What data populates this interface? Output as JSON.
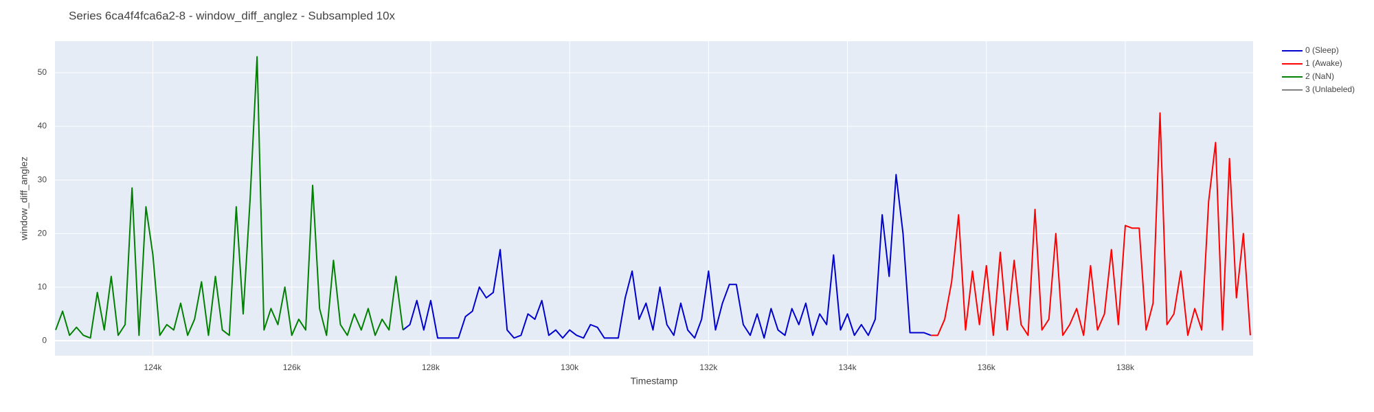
{
  "chart_data": {
    "type": "line",
    "title": "Series 6ca4f4fca6a2-8 - window_diff_anglez - Subsampled 10x",
    "x_label": "Timestamp",
    "y_label": "window_diff_anglez",
    "xlim": [
      122590,
      139840
    ],
    "ylim": [
      -2.8,
      55.9
    ],
    "xticks": [
      {
        "value": 124000,
        "label": "124k"
      },
      {
        "value": 126000,
        "label": "126k"
      },
      {
        "value": 128000,
        "label": "128k"
      },
      {
        "value": 130000,
        "label": "130k"
      },
      {
        "value": 132000,
        "label": "132k"
      },
      {
        "value": 134000,
        "label": "134k"
      },
      {
        "value": 136000,
        "label": "136k"
      },
      {
        "value": 138000,
        "label": "138k"
      }
    ],
    "yticks": [
      0,
      10,
      20,
      30,
      40,
      50
    ],
    "grid": true,
    "legend": "right",
    "series": [
      {
        "name": "0 (Sleep)",
        "color": "#0000cd",
        "x": [
          127600,
          127700,
          127800,
          127900,
          128000,
          128100,
          128200,
          128300,
          128400,
          128500,
          128600,
          128700,
          128800,
          128900,
          129000,
          129100,
          129200,
          129300,
          129400,
          129500,
          129600,
          129700,
          129800,
          129900,
          130000,
          130100,
          130200,
          130300,
          130400,
          130500,
          130600,
          130700,
          130800,
          130900,
          131000,
          131100,
          131200,
          131300,
          131400,
          131500,
          131600,
          131700,
          131800,
          131900,
          132000,
          132100,
          132200,
          132300,
          132400,
          132500,
          132600,
          132700,
          132800,
          132900,
          133000,
          133100,
          133200,
          133300,
          133400,
          133500,
          133600,
          133700,
          133800,
          133900,
          134000,
          134100,
          134200,
          134300,
          134400,
          134500,
          134600,
          134700,
          134800,
          134900,
          135000,
          135100,
          135200
        ],
        "values": [
          2,
          3,
          7.5,
          2,
          7.5,
          0.5,
          0.5,
          0.5,
          0.5,
          4.5,
          5.5,
          10,
          8,
          9,
          17,
          2,
          0.5,
          1,
          5,
          4,
          7.5,
          1,
          2,
          0.5,
          2,
          1,
          0.5,
          3,
          2.5,
          0.5,
          0.5,
          0.5,
          8,
          13,
          4,
          7,
          2,
          10,
          3,
          1,
          7,
          2,
          0.5,
          4,
          13,
          2,
          7,
          10.5,
          10.5,
          3,
          1,
          5,
          0.5,
          6,
          2,
          1,
          6,
          3,
          7,
          1,
          5,
          3,
          16,
          2,
          5,
          1,
          3,
          1,
          4,
          23.5,
          12,
          31,
          20,
          1.5,
          1.5,
          1.5,
          1
        ]
      },
      {
        "name": "1 (Awake)",
        "color": "#ff0000",
        "x": [
          135200,
          135300,
          135400,
          135500,
          135600,
          135700,
          135800,
          135900,
          136000,
          136100,
          136200,
          136300,
          136400,
          136500,
          136600,
          136700,
          136800,
          136900,
          137000,
          137100,
          137200,
          137300,
          137400,
          137500,
          137600,
          137700,
          137800,
          137900,
          138000,
          138100,
          138200,
          138300,
          138400,
          138500,
          138600,
          138700,
          138800,
          138900,
          139000,
          139100,
          139200,
          139300,
          139400,
          139500,
          139600,
          139700,
          139800
        ],
        "values": [
          1,
          1,
          4,
          11,
          23.5,
          2,
          13,
          3,
          14,
          1,
          16.5,
          2,
          15,
          3,
          1,
          24.5,
          2,
          4,
          20,
          1,
          3,
          6,
          1,
          14,
          2,
          5,
          17,
          3,
          21.5,
          21,
          21,
          2,
          7,
          42.5,
          3,
          5,
          13,
          1,
          6,
          2,
          26,
          37,
          2,
          34,
          8,
          20,
          1
        ]
      },
      {
        "name": "2 (NaN)",
        "color": "#008000",
        "x": [
          122600,
          122700,
          122800,
          122900,
          123000,
          123100,
          123200,
          123300,
          123400,
          123500,
          123600,
          123700,
          123800,
          123900,
          124000,
          124100,
          124200,
          124300,
          124400,
          124500,
          124600,
          124700,
          124800,
          124900,
          125000,
          125100,
          125200,
          125300,
          125400,
          125500,
          125600,
          125700,
          125800,
          125900,
          126000,
          126100,
          126200,
          126300,
          126400,
          126500,
          126600,
          126700,
          126800,
          126900,
          127000,
          127100,
          127200,
          127300,
          127400,
          127500,
          127600
        ],
        "values": [
          2,
          5.5,
          1,
          2.5,
          1,
          0.5,
          9,
          2,
          12,
          1,
          3,
          28.5,
          1,
          25,
          16,
          1,
          3,
          2,
          7,
          1,
          4,
          11,
          1,
          12,
          2,
          1,
          25,
          5,
          26.5,
          53,
          2,
          6,
          3,
          10,
          1,
          4,
          2,
          29,
          6,
          1,
          15,
          3,
          1,
          5,
          2,
          6,
          1,
          4,
          2,
          12,
          2
        ]
      },
      {
        "name": "3 (Unlabeled)",
        "color": "#808080",
        "x": [],
        "values": []
      }
    ]
  }
}
